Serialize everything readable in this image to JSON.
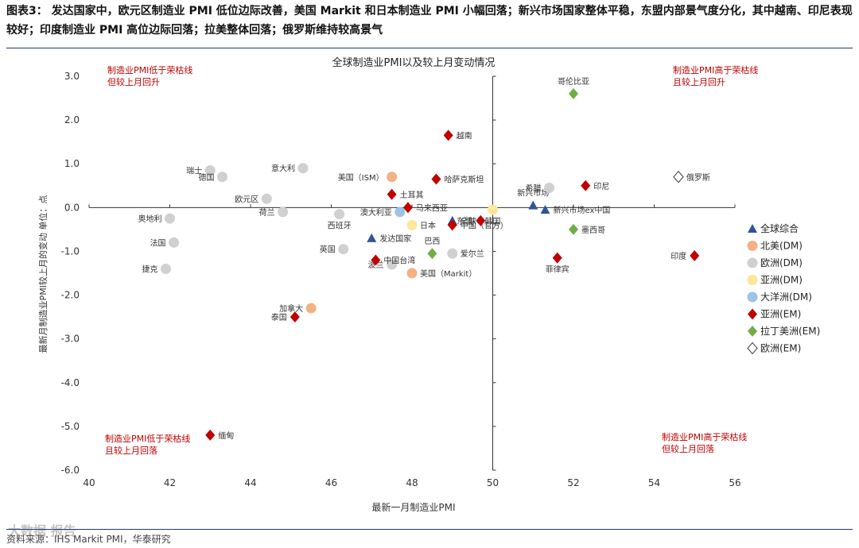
{
  "header": {
    "figure_label": "图表3：",
    "title": "发达国家中，欧元区制造业 PMI 低位边际改善，美国 Markit 和日本制造业 PMI 小幅回落；新兴市场国家整体平稳，东盟内部景气度分化，其中越南、印尼表现较好；印度制造业 PMI 高位边际回落；拉美整体回落；俄罗斯维持较高景气"
  },
  "footer": {
    "source": "资料来源：IHS Markit PMI，华泰研究"
  },
  "watermark": {
    "text": "大数据 报告"
  },
  "colors": {
    "global": "#2f5597",
    "na_dm": "#f4b183",
    "eu_dm": "#d0d0d0",
    "asia_dm": "#ffe699",
    "oceania_dm": "#9dc3e6",
    "asia_em": "#c00000",
    "latam_em": "#70ad47",
    "eu_em": "#555555",
    "quadrant_text": "#c00000"
  },
  "chart_data": {
    "type": "scatter",
    "title": "全球制造业PMI以及较上月变动情况",
    "xlabel": "最新一月制造业PMI",
    "ylabel": "最新月制造业PMI较上月的变动  单位：点",
    "xlim": [
      40,
      56
    ],
    "ylim": [
      -6,
      3
    ],
    "xticks": [
      "40",
      "42",
      "44",
      "46",
      "48",
      "50",
      "52",
      "54",
      "56"
    ],
    "yticks": [
      "-6.0",
      "-5.0",
      "-4.0",
      "-3.0",
      "-2.0",
      "-1.0",
      "0.0",
      "1.0",
      "2.0",
      "3.0"
    ],
    "quadrant_labels": {
      "top_left": "制造业PMI低于荣枯线\n但较上月回升",
      "top_right": "制造业PMI高于荣枯线\n且较上月回升",
      "bottom_left": "制造业PMI低于荣枯线\n且较上月回落",
      "bottom_right": "制造业PMI高于荣枯线\n但较上月回落"
    },
    "legend": [
      {
        "key": "global",
        "label": "全球综合",
        "marker": "triangle"
      },
      {
        "key": "na_dm",
        "label": "北美(DM)",
        "marker": "circle"
      },
      {
        "key": "eu_dm",
        "label": "欧洲(DM)",
        "marker": "circle"
      },
      {
        "key": "asia_dm",
        "label": "亚洲(DM)",
        "marker": "circle"
      },
      {
        "key": "oceania_dm",
        "label": "大洋洲(DM)",
        "marker": "circle"
      },
      {
        "key": "asia_em",
        "label": "亚洲(EM)",
        "marker": "diamond"
      },
      {
        "key": "latam_em",
        "label": "拉丁美洲(EM)",
        "marker": "diamond"
      },
      {
        "key": "eu_em",
        "label": "欧洲(EM)",
        "marker": "diamond-open"
      }
    ],
    "points": [
      {
        "name": "全球",
        "series": "global",
        "x": 49.0,
        "y": -0.3,
        "label_pos": "right"
      },
      {
        "name": "发达国家",
        "series": "global",
        "x": 47.0,
        "y": -0.7,
        "label_pos": "right"
      },
      {
        "name": "新兴市场",
        "series": "global",
        "x": 51.0,
        "y": 0.05,
        "label_pos": "top"
      },
      {
        "name": "新兴市场ex中国",
        "series": "global",
        "x": 51.3,
        "y": -0.05,
        "label_pos": "right"
      },
      {
        "name": "美国（ISM）",
        "series": "na_dm",
        "x": 47.5,
        "y": 0.7,
        "label_pos": "left"
      },
      {
        "name": "美国（Markit）",
        "series": "na_dm",
        "x": 48.0,
        "y": -1.5,
        "label_pos": "right"
      },
      {
        "name": "加拿大",
        "series": "na_dm",
        "x": 45.5,
        "y": -2.3,
        "label_pos": "left"
      },
      {
        "name": "瑞士",
        "series": "eu_dm",
        "x": 43.0,
        "y": 0.85,
        "label_pos": "left"
      },
      {
        "name": "德国",
        "series": "eu_dm",
        "x": 43.3,
        "y": 0.7,
        "label_pos": "left"
      },
      {
        "name": "意大利",
        "series": "eu_dm",
        "x": 45.3,
        "y": 0.9,
        "label_pos": "left"
      },
      {
        "name": "欧元区",
        "series": "eu_dm",
        "x": 44.4,
        "y": 0.2,
        "label_pos": "left"
      },
      {
        "name": "荷兰",
        "series": "eu_dm",
        "x": 44.8,
        "y": -0.1,
        "label_pos": "left"
      },
      {
        "name": "西班牙",
        "series": "eu_dm",
        "x": 46.2,
        "y": -0.15,
        "label_pos": "bottom"
      },
      {
        "name": "奥地利",
        "series": "eu_dm",
        "x": 42.0,
        "y": -0.25,
        "label_pos": "left"
      },
      {
        "name": "法国",
        "series": "eu_dm",
        "x": 42.1,
        "y": -0.8,
        "label_pos": "left"
      },
      {
        "name": "捷克",
        "series": "eu_dm",
        "x": 41.9,
        "y": -1.4,
        "label_pos": "left"
      },
      {
        "name": "英国",
        "series": "eu_dm",
        "x": 46.3,
        "y": -0.95,
        "label_pos": "left"
      },
      {
        "name": "希腊",
        "series": "eu_dm",
        "x": 51.4,
        "y": 0.45,
        "label_pos": "left"
      },
      {
        "name": "爱尔兰",
        "series": "eu_dm",
        "x": 49.0,
        "y": -1.05,
        "label_pos": "right"
      },
      {
        "name": "波兰",
        "series": "eu_dm",
        "x": 47.5,
        "y": -1.3,
        "label_pos": "left"
      },
      {
        "name": "日本",
        "series": "asia_dm",
        "x": 48.0,
        "y": -0.4,
        "label_pos": "right"
      },
      {
        "name": "韩国",
        "series": "asia_dm",
        "x": 50.0,
        "y": -0.05,
        "label_pos": "bottom"
      },
      {
        "name": "澳大利亚",
        "series": "oceania_dm",
        "x": 47.7,
        "y": -0.1,
        "label_pos": "left"
      },
      {
        "name": "越南",
        "series": "asia_em",
        "x": 48.9,
        "y": 1.65,
        "label_pos": "right"
      },
      {
        "name": "哈萨克斯坦",
        "series": "asia_em",
        "x": 48.6,
        "y": 0.65,
        "label_pos": "right"
      },
      {
        "name": "土耳其",
        "series": "asia_em",
        "x": 47.5,
        "y": 0.3,
        "label_pos": "right"
      },
      {
        "name": "马来西亚",
        "series": "asia_em",
        "x": 47.9,
        "y": 0.0,
        "label_pos": "right"
      },
      {
        "name": "中国（官方）",
        "series": "asia_em",
        "x": 49.0,
        "y": -0.4,
        "label_pos": "right"
      },
      {
        "name": "东盟",
        "series": "asia_em",
        "x": 49.7,
        "y": -0.3,
        "label_pos": "left"
      },
      {
        "name": "印尼",
        "series": "asia_em",
        "x": 52.3,
        "y": 0.5,
        "label_pos": "right"
      },
      {
        "name": "印度",
        "series": "asia_em",
        "x": 55.0,
        "y": -1.1,
        "label_pos": "left"
      },
      {
        "name": "菲律宾",
        "series": "asia_em",
        "x": 51.6,
        "y": -1.15,
        "label_pos": "bottom"
      },
      {
        "name": "中国台湾",
        "series": "asia_em",
        "x": 47.1,
        "y": -1.2,
        "label_pos": "right"
      },
      {
        "name": "泰国",
        "series": "asia_em",
        "x": 45.1,
        "y": -2.5,
        "label_pos": "left"
      },
      {
        "name": "缅甸",
        "series": "asia_em",
        "x": 43.0,
        "y": -5.2,
        "label_pos": "right"
      },
      {
        "name": "哥伦比亚",
        "series": "latam_em",
        "x": 52.0,
        "y": 2.6,
        "label_pos": "top"
      },
      {
        "name": "巴西",
        "series": "latam_em",
        "x": 48.5,
        "y": -1.05,
        "label_pos": "top"
      },
      {
        "name": "墨西哥",
        "series": "latam_em",
        "x": 52.0,
        "y": -0.5,
        "label_pos": "right"
      },
      {
        "name": "俄罗斯",
        "series": "eu_em",
        "x": 54.6,
        "y": 0.7,
        "label_pos": "right"
      }
    ]
  }
}
